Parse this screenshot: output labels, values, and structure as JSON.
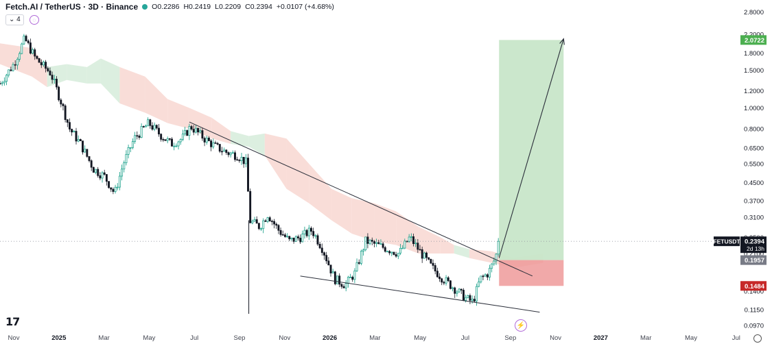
{
  "header": {
    "symbol_title": "Fetch.AI / TetherUS · 3D · Binance",
    "open": "O0.2286",
    "high": "H0.2419",
    "low": "L0.2209",
    "close": "C0.2394",
    "change": "+0.0107 (+4.68%)",
    "interval_pill": "4"
  },
  "colors": {
    "up": "#089981",
    "down": "#131722",
    "cloud_bear": "#f8d7d1",
    "cloud_bull": "#d6ecdb",
    "profit_zone": "#c8e6c9",
    "loss_zone": "#ef9a9a",
    "target_label": "#4caf50",
    "stop_label": "#c62828",
    "last_price_label": "#131722",
    "entry_label": "#787b86"
  },
  "chart_data": {
    "type": "candlestick",
    "title": "Fetch.AI / TetherUS · 3D · Binance",
    "y_scale": "log",
    "ylim": [
      0.095,
      3.0
    ],
    "y_ticks": [
      "2.8000",
      "2.2000",
      "1.8000",
      "1.5000",
      "1.2000",
      "1.0000",
      "0.8000",
      "0.6500",
      "0.5500",
      "0.4500",
      "0.3700",
      "0.3100",
      "0.2500",
      "0.2100",
      "0.1400",
      "0.1150",
      "0.0970"
    ],
    "x_ticks": [
      "Nov",
      "2025",
      "Mar",
      "May",
      "Jul",
      "Sep",
      "Nov",
      "2026",
      "Mar",
      "May",
      "Jul",
      "Sep",
      "Nov",
      "2027",
      "Mar",
      "May",
      "Jul"
    ],
    "x_range": [
      "2024-11-01",
      "2027-08-15"
    ],
    "price_path": [
      [
        "2024-11-01",
        1.3
      ],
      [
        "2024-11-20",
        1.6
      ],
      [
        "2024-12-05",
        2.1
      ],
      [
        "2024-12-20",
        1.7
      ],
      [
        "2025-01-10",
        1.45
      ],
      [
        "2025-01-25",
        1.05
      ],
      [
        "2025-02-05",
        0.8
      ],
      [
        "2025-02-20",
        0.68
      ],
      [
        "2025-03-10",
        0.52
      ],
      [
        "2025-03-25",
        0.48
      ],
      [
        "2025-04-08",
        0.4
      ],
      [
        "2025-04-20",
        0.55
      ],
      [
        "2025-05-05",
        0.72
      ],
      [
        "2025-05-25",
        0.85
      ],
      [
        "2025-06-10",
        0.75
      ],
      [
        "2025-06-25",
        0.68
      ],
      [
        "2025-07-10",
        0.72
      ],
      [
        "2025-07-22",
        0.82
      ],
      [
        "2025-08-10",
        0.72
      ],
      [
        "2025-08-25",
        0.66
      ],
      [
        "2025-09-10",
        0.62
      ],
      [
        "2025-09-25",
        0.6
      ],
      [
        "2025-10-08",
        0.55
      ],
      [
        "2025-10-10",
        0.3
      ],
      [
        "2025-10-25",
        0.28
      ],
      [
        "2025-11-05",
        0.32
      ],
      [
        "2025-11-20",
        0.27
      ],
      [
        "2025-12-05",
        0.24
      ],
      [
        "2025-12-20",
        0.25
      ],
      [
        "2026-01-05",
        0.27
      ],
      [
        "2026-01-20",
        0.22
      ],
      [
        "2026-02-05",
        0.16
      ],
      [
        "2026-02-20",
        0.15
      ],
      [
        "2026-03-05",
        0.17
      ],
      [
        "2026-03-20",
        0.24
      ],
      [
        "2026-04-05",
        0.23
      ],
      [
        "2026-04-20",
        0.22
      ],
      [
        "2026-05-05",
        0.21
      ],
      [
        "2026-05-20",
        0.25
      ],
      [
        "2026-06-05",
        0.21
      ],
      [
        "2026-06-20",
        0.18
      ],
      [
        "2026-07-05",
        0.16
      ],
      [
        "2026-07-20",
        0.145
      ],
      [
        "2026-08-05",
        0.13
      ],
      [
        "2026-08-15",
        0.125
      ],
      [
        "2026-08-25",
        0.16
      ],
      [
        "2026-09-05",
        0.17
      ],
      [
        "2026-09-15",
        0.2
      ],
      [
        "2026-09-20",
        0.2394
      ]
    ],
    "wick_low": {
      "date": "2025-10-10",
      "value": 0.11
    },
    "ichimoku_cloud": [
      [
        "2024-11-01",
        2.0,
        1.6,
        "bear"
      ],
      [
        "2024-12-15",
        1.9,
        1.4,
        "bear"
      ],
      [
        "2025-01-05",
        1.55,
        1.25,
        "bull"
      ],
      [
        "2025-02-01",
        1.6,
        1.35,
        "bull"
      ],
      [
        "2025-03-01",
        1.55,
        1.3,
        "bull"
      ],
      [
        "2025-03-20",
        1.7,
        1.3,
        "bull"
      ],
      [
        "2025-04-15",
        1.55,
        1.05,
        "bear"
      ],
      [
        "2025-05-20",
        1.4,
        0.95,
        "bear"
      ],
      [
        "2025-06-20",
        1.1,
        0.85,
        "bear"
      ],
      [
        "2025-07-20",
        1.0,
        0.8,
        "bear"
      ],
      [
        "2025-08-20",
        0.9,
        0.72,
        "bear"
      ],
      [
        "2025-09-15",
        0.78,
        0.68,
        "bull"
      ],
      [
        "2025-10-10",
        0.74,
        0.66,
        "bull"
      ],
      [
        "2025-11-01",
        0.76,
        0.6,
        "bear"
      ],
      [
        "2025-12-01",
        0.72,
        0.42,
        "bear"
      ],
      [
        "2026-01-01",
        0.55,
        0.36,
        "bear"
      ],
      [
        "2026-02-01",
        0.42,
        0.3,
        "bear"
      ],
      [
        "2026-03-01",
        0.38,
        0.26,
        "bear"
      ],
      [
        "2026-04-01",
        0.36,
        0.24,
        "bear"
      ],
      [
        "2026-05-01",
        0.33,
        0.23,
        "bear"
      ],
      [
        "2026-06-01",
        0.28,
        0.21,
        "bear"
      ],
      [
        "2026-07-01",
        0.25,
        0.21,
        "bear"
      ],
      [
        "2026-07-20",
        0.23,
        0.21,
        "bull"
      ],
      [
        "2026-08-10",
        0.22,
        0.2,
        "bear"
      ],
      [
        "2026-09-10",
        0.215,
        0.19,
        "bear"
      ],
      [
        "2026-10-10",
        0.2,
        0.18,
        "bear"
      ],
      [
        "2026-11-20",
        0.21,
        0.19,
        "bear"
      ]
    ],
    "trendlines": [
      {
        "name": "upper",
        "from": [
          "2025-07-20",
          0.86
        ],
        "to": [
          "2026-11-05",
          0.165
        ]
      },
      {
        "name": "lower",
        "from": [
          "2025-12-20",
          0.165
        ],
        "to": [
          "2026-11-15",
          0.112
        ]
      }
    ],
    "position": {
      "start": "2026-09-20",
      "end": "2026-12-18",
      "target": 2.0722,
      "entry": 0.1957,
      "stop": 0.1484,
      "arrow_from": [
        "2026-09-20",
        0.2
      ],
      "arrow_to": [
        "2026-12-18",
        2.1
      ]
    },
    "price_labels": {
      "target": "2.0722",
      "symbol": "FETUSDT",
      "last": "0.2394",
      "countdown": "2d 13h",
      "entry": "0.1957",
      "stop": "0.1484"
    },
    "last_price": 0.2394
  }
}
